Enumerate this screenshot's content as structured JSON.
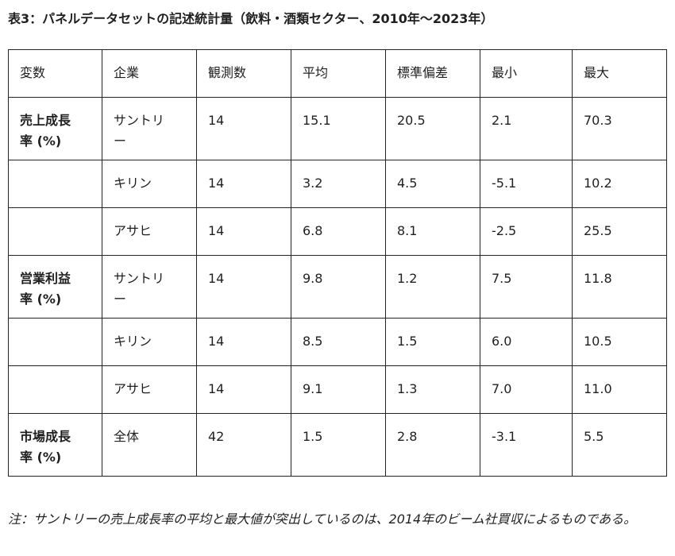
{
  "title": "表3：パネルデータセットの記述統計量（飲料・酒類セクター、2010年〜2023年）",
  "table": {
    "headers": [
      "変数",
      "企業",
      "観測数",
      "平均",
      "標準偏差",
      "最小",
      "最大"
    ],
    "groups": [
      {
        "variable": "売上成長率 (%)",
        "rows": [
          [
            "サントリー",
            "14",
            "15.1",
            "20.5",
            "2.1",
            "70.3"
          ],
          [
            "キリン",
            "14",
            "3.2",
            "4.5",
            "-5.1",
            "10.2"
          ],
          [
            "アサヒ",
            "14",
            "6.8",
            "8.1",
            "-2.5",
            "25.5"
          ]
        ]
      },
      {
        "variable": "営業利益率 (%)",
        "rows": [
          [
            "サントリー",
            "14",
            "9.8",
            "1.2",
            "7.5",
            "11.8"
          ],
          [
            "キリン",
            "14",
            "8.5",
            "1.5",
            "6.0",
            "10.5"
          ],
          [
            "アサヒ",
            "14",
            "9.1",
            "1.3",
            "7.0",
            "11.0"
          ]
        ]
      },
      {
        "variable": "市場成長率 (%)",
        "rows": [
          [
            "全体",
            "42",
            "1.5",
            "2.8",
            "-3.1",
            "5.5"
          ]
        ]
      }
    ]
  },
  "note": "注：サントリーの売上成長率の平均と最大値が突出しているのは、2014年のビーム社買収によるものである。"
}
